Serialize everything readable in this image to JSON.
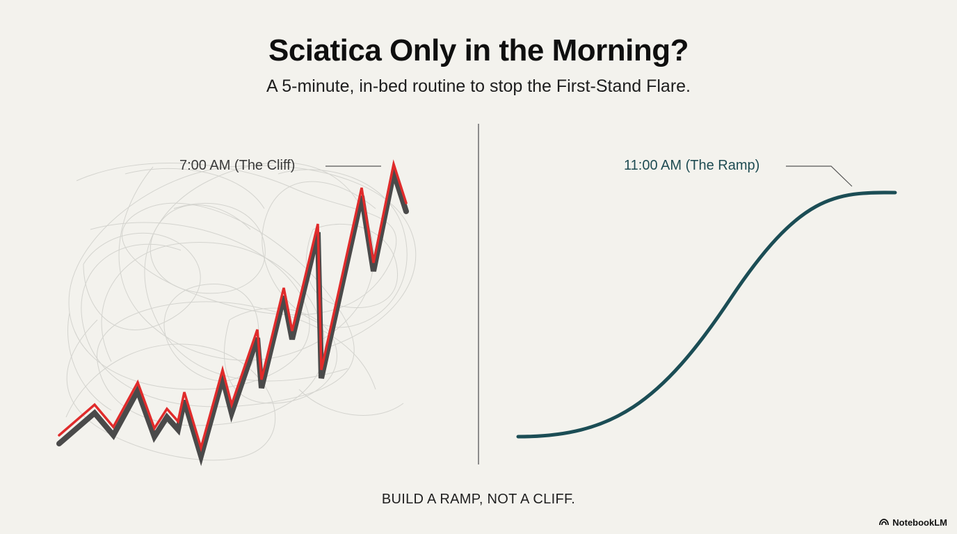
{
  "title": "Sciatica Only in the Morning?",
  "subtitle": "A 5-minute, in-bed routine to stop the First-Stand Flare.",
  "left_panel": {
    "label": "7:00 AM (The Cliff)",
    "line_color": "#e02b2b",
    "shadow_color": "#4a4a4a"
  },
  "right_panel": {
    "label": "11:00 AM (The Ramp)",
    "line_color": "#1b4d55"
  },
  "tagline": "BUILD A RAMP, NOT A CLIFF.",
  "brand": {
    "name": "NotebookLM",
    "icon": "notebooklm-logo-icon"
  }
}
